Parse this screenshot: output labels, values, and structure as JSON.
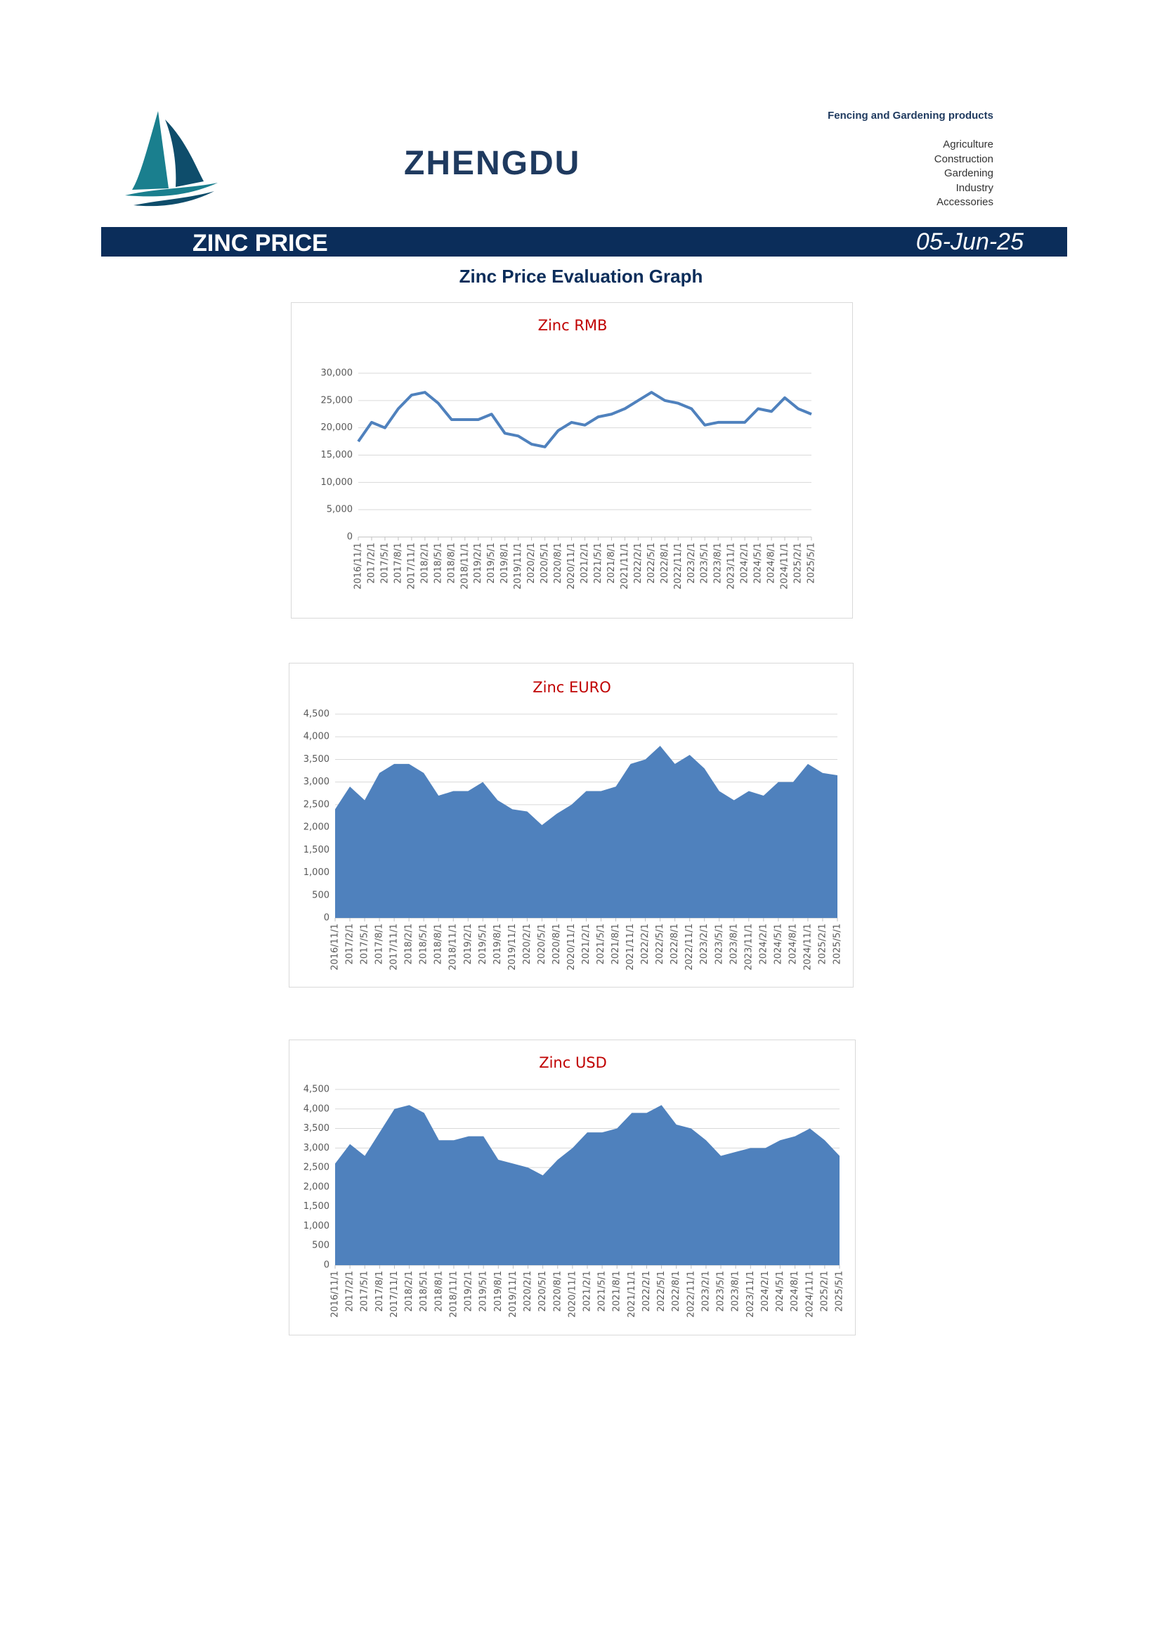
{
  "header": {
    "brand": "ZHENGDU",
    "tagline": "Fencing and Gardening products",
    "menu": [
      "Agriculture",
      "Construction",
      "Gardening",
      "Industry",
      "Accessories"
    ]
  },
  "banner": {
    "title": "ZINC PRICE",
    "date": "05-Jun-25"
  },
  "section_title": "Zinc Price Evaluation Graph",
  "chart_data": [
    {
      "type": "line",
      "title": "Zinc RMB",
      "color": "#4f81bd",
      "categories": [
        "2016/11/1",
        "2017/2/1",
        "2017/5/1",
        "2017/8/1",
        "2017/11/1",
        "2018/2/1",
        "2018/5/1",
        "2018/8/1",
        "2018/11/1",
        "2019/2/1",
        "2019/5/1",
        "2019/8/1",
        "2019/11/1",
        "2020/2/1",
        "2020/5/1",
        "2020/8/1",
        "2020/11/1",
        "2021/2/1",
        "2021/5/1",
        "2021/8/1",
        "2021/11/1",
        "2022/2/1",
        "2022/5/1",
        "2022/8/1",
        "2022/11/1",
        "2023/2/1",
        "2023/5/1",
        "2023/8/1",
        "2023/11/1",
        "2024/2/1",
        "2024/5/1",
        "2024/8/1",
        "2024/11/1",
        "2025/2/1",
        "2025/5/1"
      ],
      "values": [
        17500,
        21000,
        20000,
        23500,
        26000,
        26500,
        24500,
        21500,
        21500,
        21500,
        22500,
        19000,
        18500,
        17000,
        16500,
        19500,
        21000,
        20500,
        22000,
        22500,
        23500,
        25000,
        26500,
        25000,
        24500,
        23500,
        20500,
        21000,
        21000,
        21000,
        23500,
        23000,
        25500,
        23500,
        22500
      ],
      "ylim": [
        0,
        30000
      ],
      "yticks": [
        0,
        {
          "value": 5000,
          "label": "5,000"
        },
        {
          "value": 10000,
          "label": "10,000"
        },
        {
          "value": 15000,
          "label": "15,000"
        },
        {
          "value": 20000,
          "label": "20,000"
        },
        {
          "value": 25000,
          "label": "25,000"
        },
        {
          "value": 30000,
          "label": "30,000"
        }
      ],
      "grid": true
    },
    {
      "type": "area",
      "title": "Zinc EURO",
      "color": "#4f81bd",
      "categories": [
        "2016/11/1",
        "2017/2/1",
        "2017/5/1",
        "2017/8/1",
        "2017/11/1",
        "2018/2/1",
        "2018/5/1",
        "2018/8/1",
        "2018/11/1",
        "2019/2/1",
        "2019/5/1",
        "2019/8/1",
        "2019/11/1",
        "2020/2/1",
        "2020/5/1",
        "2020/8/1",
        "2020/11/1",
        "2021/2/1",
        "2021/5/1",
        "2021/8/1",
        "2021/11/1",
        "2022/2/1",
        "2022/5/1",
        "2022/8/1",
        "2022/11/1",
        "2023/2/1",
        "2023/5/1",
        "2023/8/1",
        "2023/11/1",
        "2024/2/1",
        "2024/5/1",
        "2024/8/1",
        "2024/11/1",
        "2025/2/1",
        "2025/5/1"
      ],
      "values": [
        2400,
        2900,
        2600,
        3200,
        3400,
        3400,
        3200,
        2700,
        2800,
        2800,
        3000,
        2600,
        2400,
        2350,
        2050,
        2300,
        2500,
        2800,
        2800,
        2900,
        3400,
        3500,
        3800,
        3400,
        3600,
        3300,
        2800,
        2600,
        2800,
        2700,
        3000,
        3000,
        3400,
        3200,
        3150
      ],
      "ylim": [
        0,
        4500
      ],
      "yticks": [
        0,
        500,
        {
          "value": 1000,
          "label": "1,000"
        },
        {
          "value": 1500,
          "label": "1,500"
        },
        {
          "value": 2000,
          "label": "2,000"
        },
        {
          "value": 2500,
          "label": "2,500"
        },
        {
          "value": 3000,
          "label": "3,000"
        },
        {
          "value": 3500,
          "label": "3,500"
        },
        {
          "value": 4000,
          "label": "4,000"
        },
        {
          "value": 4500,
          "label": "4,500"
        }
      ],
      "grid": true
    },
    {
      "type": "area",
      "title": "Zinc USD",
      "color": "#4f81bd",
      "categories": [
        "2016/11/1",
        "2017/2/1",
        "2017/5/1",
        "2017/8/1",
        "2017/11/1",
        "2018/2/1",
        "2018/5/1",
        "2018/8/1",
        "2018/11/1",
        "2019/2/1",
        "2019/5/1",
        "2019/8/1",
        "2019/11/1",
        "2020/2/1",
        "2020/5/1",
        "2020/8/1",
        "2020/11/1",
        "2021/2/1",
        "2021/5/1",
        "2021/8/1",
        "2021/11/1",
        "2022/2/1",
        "2022/5/1",
        "2022/8/1",
        "2022/11/1",
        "2023/2/1",
        "2023/5/1",
        "2023/8/1",
        "2023/11/1",
        "2024/2/1",
        "2024/5/1",
        "2024/8/1",
        "2024/11/1",
        "2025/2/1",
        "2025/5/1"
      ],
      "values": [
        2600,
        3100,
        2800,
        3400,
        4000,
        4100,
        3900,
        3200,
        3200,
        3300,
        3300,
        2700,
        2600,
        2500,
        2300,
        2700,
        3000,
        3400,
        3400,
        3500,
        3900,
        3900,
        4100,
        3600,
        3500,
        3200,
        2800,
        2900,
        3000,
        3000,
        3200,
        3300,
        3500,
        3200,
        2800
      ],
      "ylim": [
        0,
        4500
      ],
      "yticks": [
        0,
        500,
        {
          "value": 1000,
          "label": "1,000"
        },
        {
          "value": 1500,
          "label": "1,500"
        },
        {
          "value": 2000,
          "label": "2,000"
        },
        {
          "value": 2500,
          "label": "2,500"
        },
        {
          "value": 3000,
          "label": "3,000"
        },
        {
          "value": 3500,
          "label": "3,500"
        },
        {
          "value": 4000,
          "label": "4,000"
        },
        {
          "value": 4500,
          "label": "4,500"
        }
      ],
      "grid": true
    }
  ]
}
